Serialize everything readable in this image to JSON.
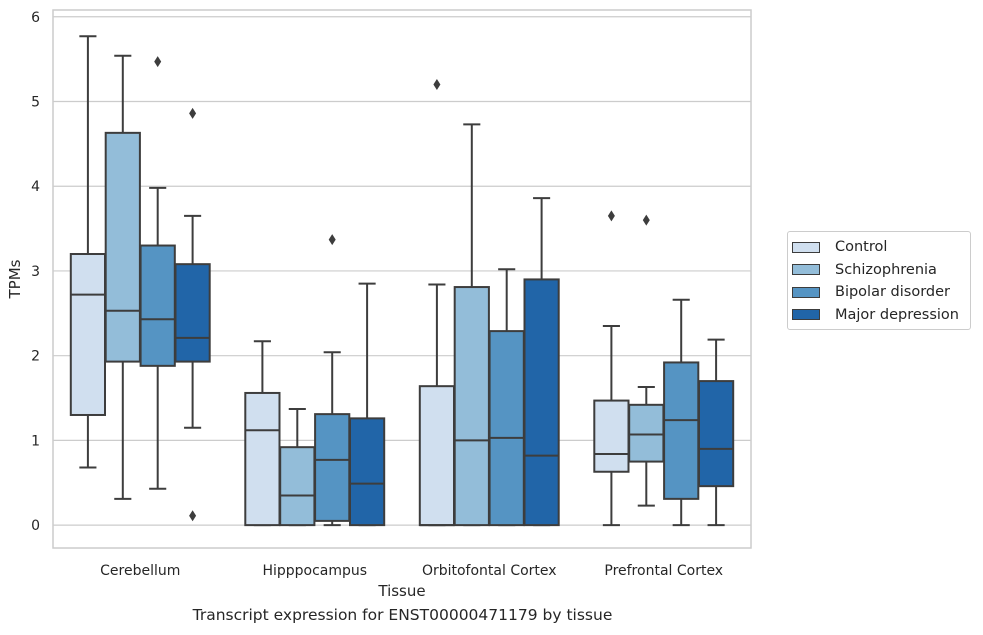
{
  "chart_data": {
    "type": "box",
    "title": "",
    "caption": "Transcript expression for ENST00000471179 by tissue",
    "xlabel": "Tissue",
    "ylabel": "TPMs",
    "ylim": [
      -0.27,
      6.08
    ],
    "yticks": [
      0,
      1,
      2,
      3,
      4,
      5,
      6
    ],
    "grid": "horizontal",
    "legend_position": "right",
    "categories": [
      "Cerebellum",
      "Hipppocampus",
      "Orbitofontal Cortex",
      "Prefrontal Cortex"
    ],
    "series": [
      {
        "name": "Control",
        "color": "#d0dfef",
        "boxes": [
          {
            "whisker_low": 0.68,
            "q1": 1.3,
            "median": 2.72,
            "q3": 3.2,
            "whisker_high": 5.77,
            "outliers": []
          },
          {
            "whisker_low": 0.0,
            "q1": 0.0,
            "median": 1.12,
            "q3": 1.56,
            "whisker_high": 2.17,
            "outliers": []
          },
          {
            "whisker_low": 0.0,
            "q1": 0.0,
            "median": 0.0,
            "q3": 1.64,
            "whisker_high": 2.84,
            "outliers": [
              5.2
            ]
          },
          {
            "whisker_low": 0.0,
            "q1": 0.63,
            "median": 0.84,
            "q3": 1.47,
            "whisker_high": 2.35,
            "outliers": [
              3.65
            ]
          }
        ]
      },
      {
        "name": "Schizophrenia",
        "color": "#93bdd9",
        "boxes": [
          {
            "whisker_low": 0.31,
            "q1": 1.93,
            "median": 2.53,
            "q3": 4.63,
            "whisker_high": 5.54,
            "outliers": []
          },
          {
            "whisker_low": 0.0,
            "q1": 0.0,
            "median": 0.35,
            "q3": 0.92,
            "whisker_high": 1.37,
            "outliers": []
          },
          {
            "whisker_low": 0.0,
            "q1": 0.0,
            "median": 1.0,
            "q3": 2.81,
            "whisker_high": 4.73,
            "outliers": []
          },
          {
            "whisker_low": 0.23,
            "q1": 0.75,
            "median": 1.07,
            "q3": 1.42,
            "whisker_high": 1.63,
            "outliers": [
              3.6
            ]
          }
        ]
      },
      {
        "name": "Bipolar disorder",
        "color": "#5594c3",
        "boxes": [
          {
            "whisker_low": 0.43,
            "q1": 1.88,
            "median": 2.43,
            "q3": 3.3,
            "whisker_high": 3.98,
            "outliers": [
              5.47
            ]
          },
          {
            "whisker_low": 0.0,
            "q1": 0.05,
            "median": 0.77,
            "q3": 1.31,
            "whisker_high": 2.04,
            "outliers": [
              3.37
            ]
          },
          {
            "whisker_low": 0.0,
            "q1": 0.0,
            "median": 1.03,
            "q3": 2.29,
            "whisker_high": 3.02,
            "outliers": []
          },
          {
            "whisker_low": 0.0,
            "q1": 0.31,
            "median": 1.24,
            "q3": 1.92,
            "whisker_high": 2.66,
            "outliers": []
          }
        ]
      },
      {
        "name": "Major depression",
        "color": "#2165a8",
        "boxes": [
          {
            "whisker_low": 1.15,
            "q1": 1.93,
            "median": 2.21,
            "q3": 3.08,
            "whisker_high": 3.65,
            "outliers": [
              4.86,
              0.11
            ]
          },
          {
            "whisker_low": 0.0,
            "q1": 0.0,
            "median": 0.49,
            "q3": 1.26,
            "whisker_high": 2.85,
            "outliers": []
          },
          {
            "whisker_low": 0.0,
            "q1": 0.0,
            "median": 0.82,
            "q3": 2.9,
            "whisker_high": 3.86,
            "outliers": []
          },
          {
            "whisker_low": 0.0,
            "q1": 0.46,
            "median": 0.9,
            "q3": 1.7,
            "whisker_high": 2.19,
            "outliers": []
          }
        ]
      }
    ]
  }
}
